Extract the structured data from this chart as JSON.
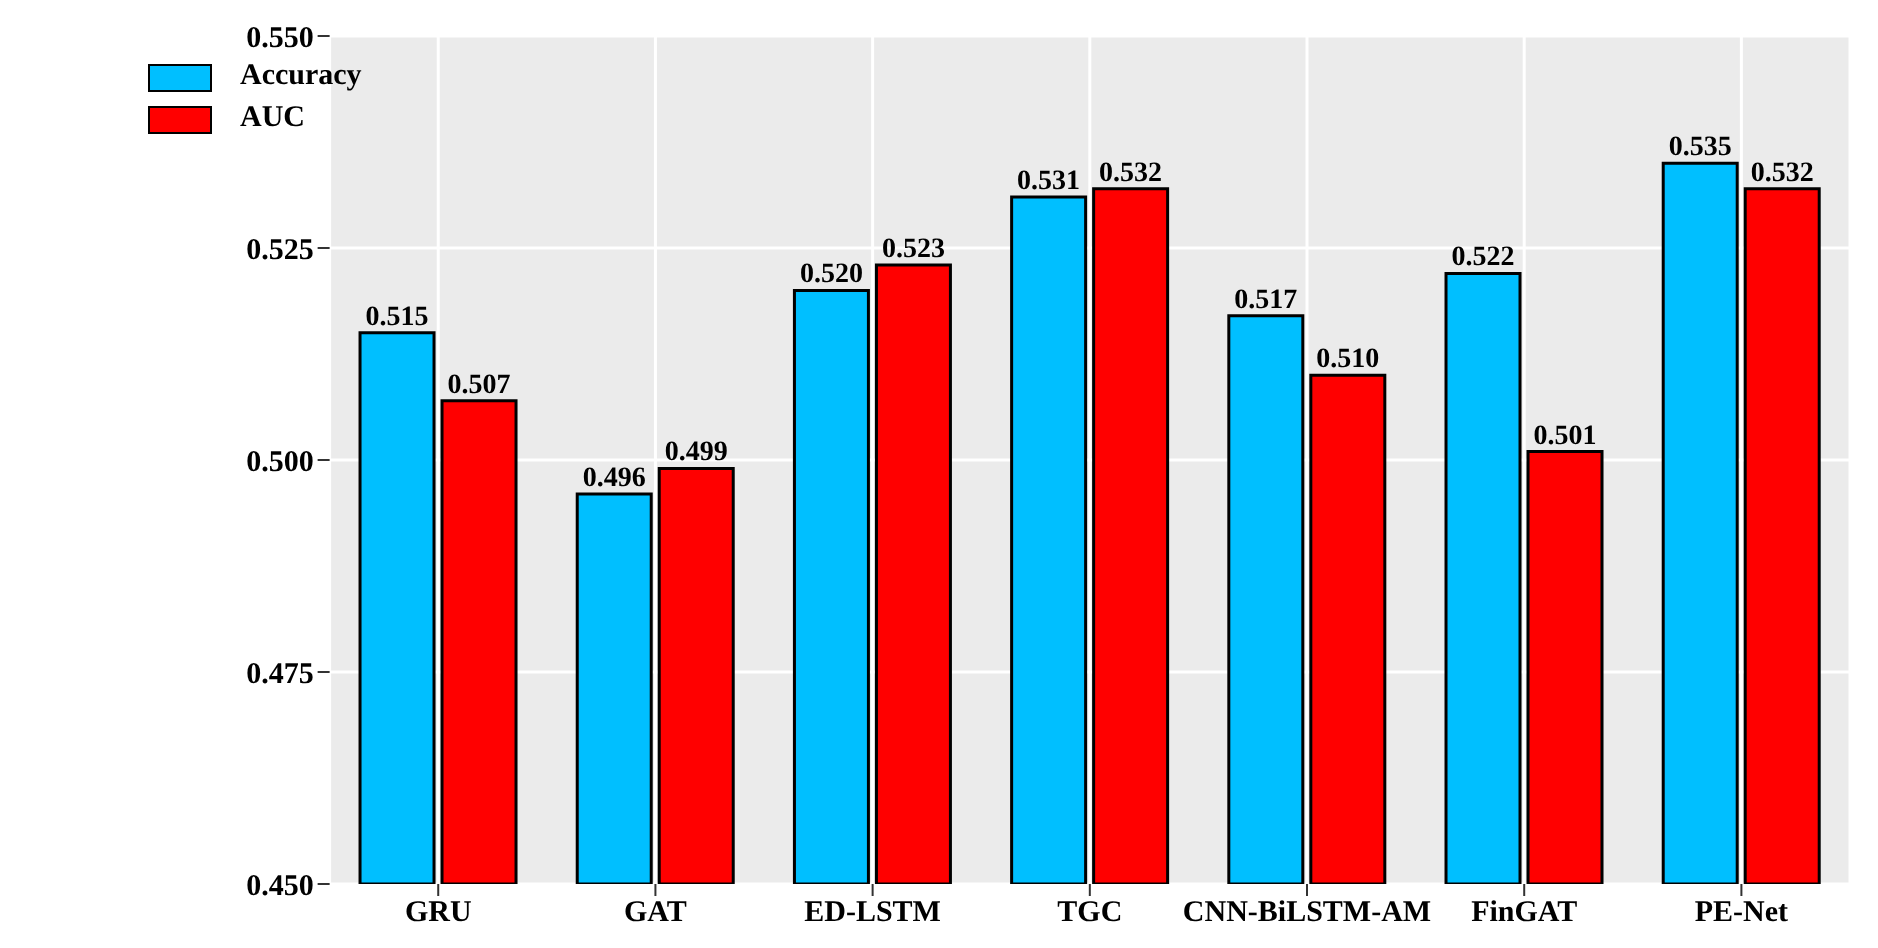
{
  "chart_data": {
    "type": "bar",
    "categories": [
      "GRU",
      "GAT",
      "ED-LSTM",
      "TGC",
      "CNN-BiLSTM-AM",
      "FinGAT",
      "PE-Net"
    ],
    "series": [
      {
        "name": "Accuracy",
        "color": "#00bfff",
        "values": [
          0.515,
          0.496,
          0.52,
          0.531,
          0.517,
          0.522,
          0.535
        ],
        "value_labels": [
          "0.515",
          "0.496",
          "0.520",
          "0.531",
          "0.517",
          "0.522",
          "0.535"
        ]
      },
      {
        "name": "AUC",
        "color": "#ff0000",
        "values": [
          0.507,
          0.499,
          0.523,
          0.532,
          0.51,
          0.501,
          0.532
        ],
        "value_labels": [
          "0.507",
          "0.499",
          "0.523",
          "0.532",
          "0.510",
          "0.501",
          "0.532"
        ]
      }
    ],
    "ylim": [
      0.45,
      0.55
    ],
    "yticks": [
      {
        "value": 0.45,
        "label": "0.450"
      },
      {
        "value": 0.475,
        "label": "0.475"
      },
      {
        "value": 0.5,
        "label": "0.500"
      },
      {
        "value": 0.525,
        "label": "0.525"
      },
      {
        "value": 0.55,
        "label": "0.550"
      }
    ],
    "grid": true,
    "legend": "top left"
  }
}
